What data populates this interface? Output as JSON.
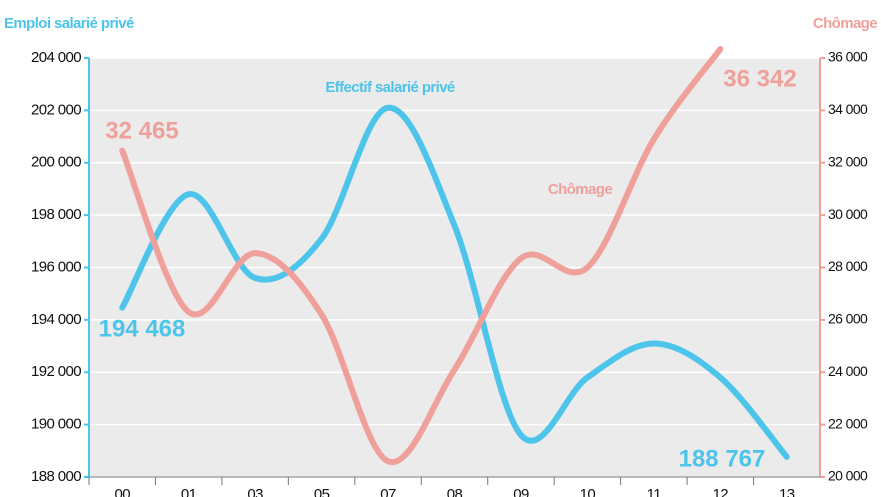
{
  "chart_data": {
    "type": "line",
    "y_title": "Emploi salarié privé",
    "y2_title": "Chômage",
    "categories": [
      "00",
      "01",
      "03",
      "05",
      "07",
      "08",
      "09",
      "10",
      "11",
      "12",
      "13"
    ],
    "series": [
      {
        "name": "Effectif salarié privé",
        "color": "#4dc4ea",
        "axis": "y",
        "values": [
          194468,
          198800,
          195600,
          197100,
          202100,
          197600,
          189600,
          191800,
          193100,
          191800,
          188767
        ],
        "value_labels": [
          "194 468",
          null,
          null,
          null,
          null,
          null,
          null,
          null,
          null,
          null,
          "188 767"
        ]
      },
      {
        "name": "Chômage",
        "color": "#f0a09a",
        "axis": "y2",
        "values": [
          32465,
          26300,
          28550,
          26200,
          20600,
          24100,
          28350,
          28000,
          32900,
          36342,
          null
        ],
        "value_labels": [
          "32 465",
          null,
          null,
          null,
          null,
          null,
          null,
          null,
          null,
          "36 342",
          null
        ]
      }
    ],
    "ylim": [
      188000,
      204000
    ],
    "yticks": [
      {
        "value": 188000,
        "label": "188 000"
      },
      {
        "value": 190000,
        "label": "190 000"
      },
      {
        "value": 192000,
        "label": "192 000"
      },
      {
        "value": 194000,
        "label": "194 000"
      },
      {
        "value": 196000,
        "label": "196 000"
      },
      {
        "value": 198000,
        "label": "198 000"
      },
      {
        "value": 200000,
        "label": "200 000"
      },
      {
        "value": 202000,
        "label": "202 000"
      },
      {
        "value": 204000,
        "label": "204 000"
      }
    ],
    "y2lim": [
      20000,
      36000
    ],
    "y2ticks": [
      {
        "value": 20000,
        "label": "20 000"
      },
      {
        "value": 22000,
        "label": "22 000"
      },
      {
        "value": 24000,
        "label": "24 000"
      },
      {
        "value": 26000,
        "label": "26 000"
      },
      {
        "value": 28000,
        "label": "28 000"
      },
      {
        "value": 30000,
        "label": "30 000"
      },
      {
        "value": 32000,
        "label": "32 000"
      },
      {
        "value": 34000,
        "label": "34 000"
      },
      {
        "value": 36000,
        "label": "36 000"
      }
    ],
    "grid": true
  }
}
